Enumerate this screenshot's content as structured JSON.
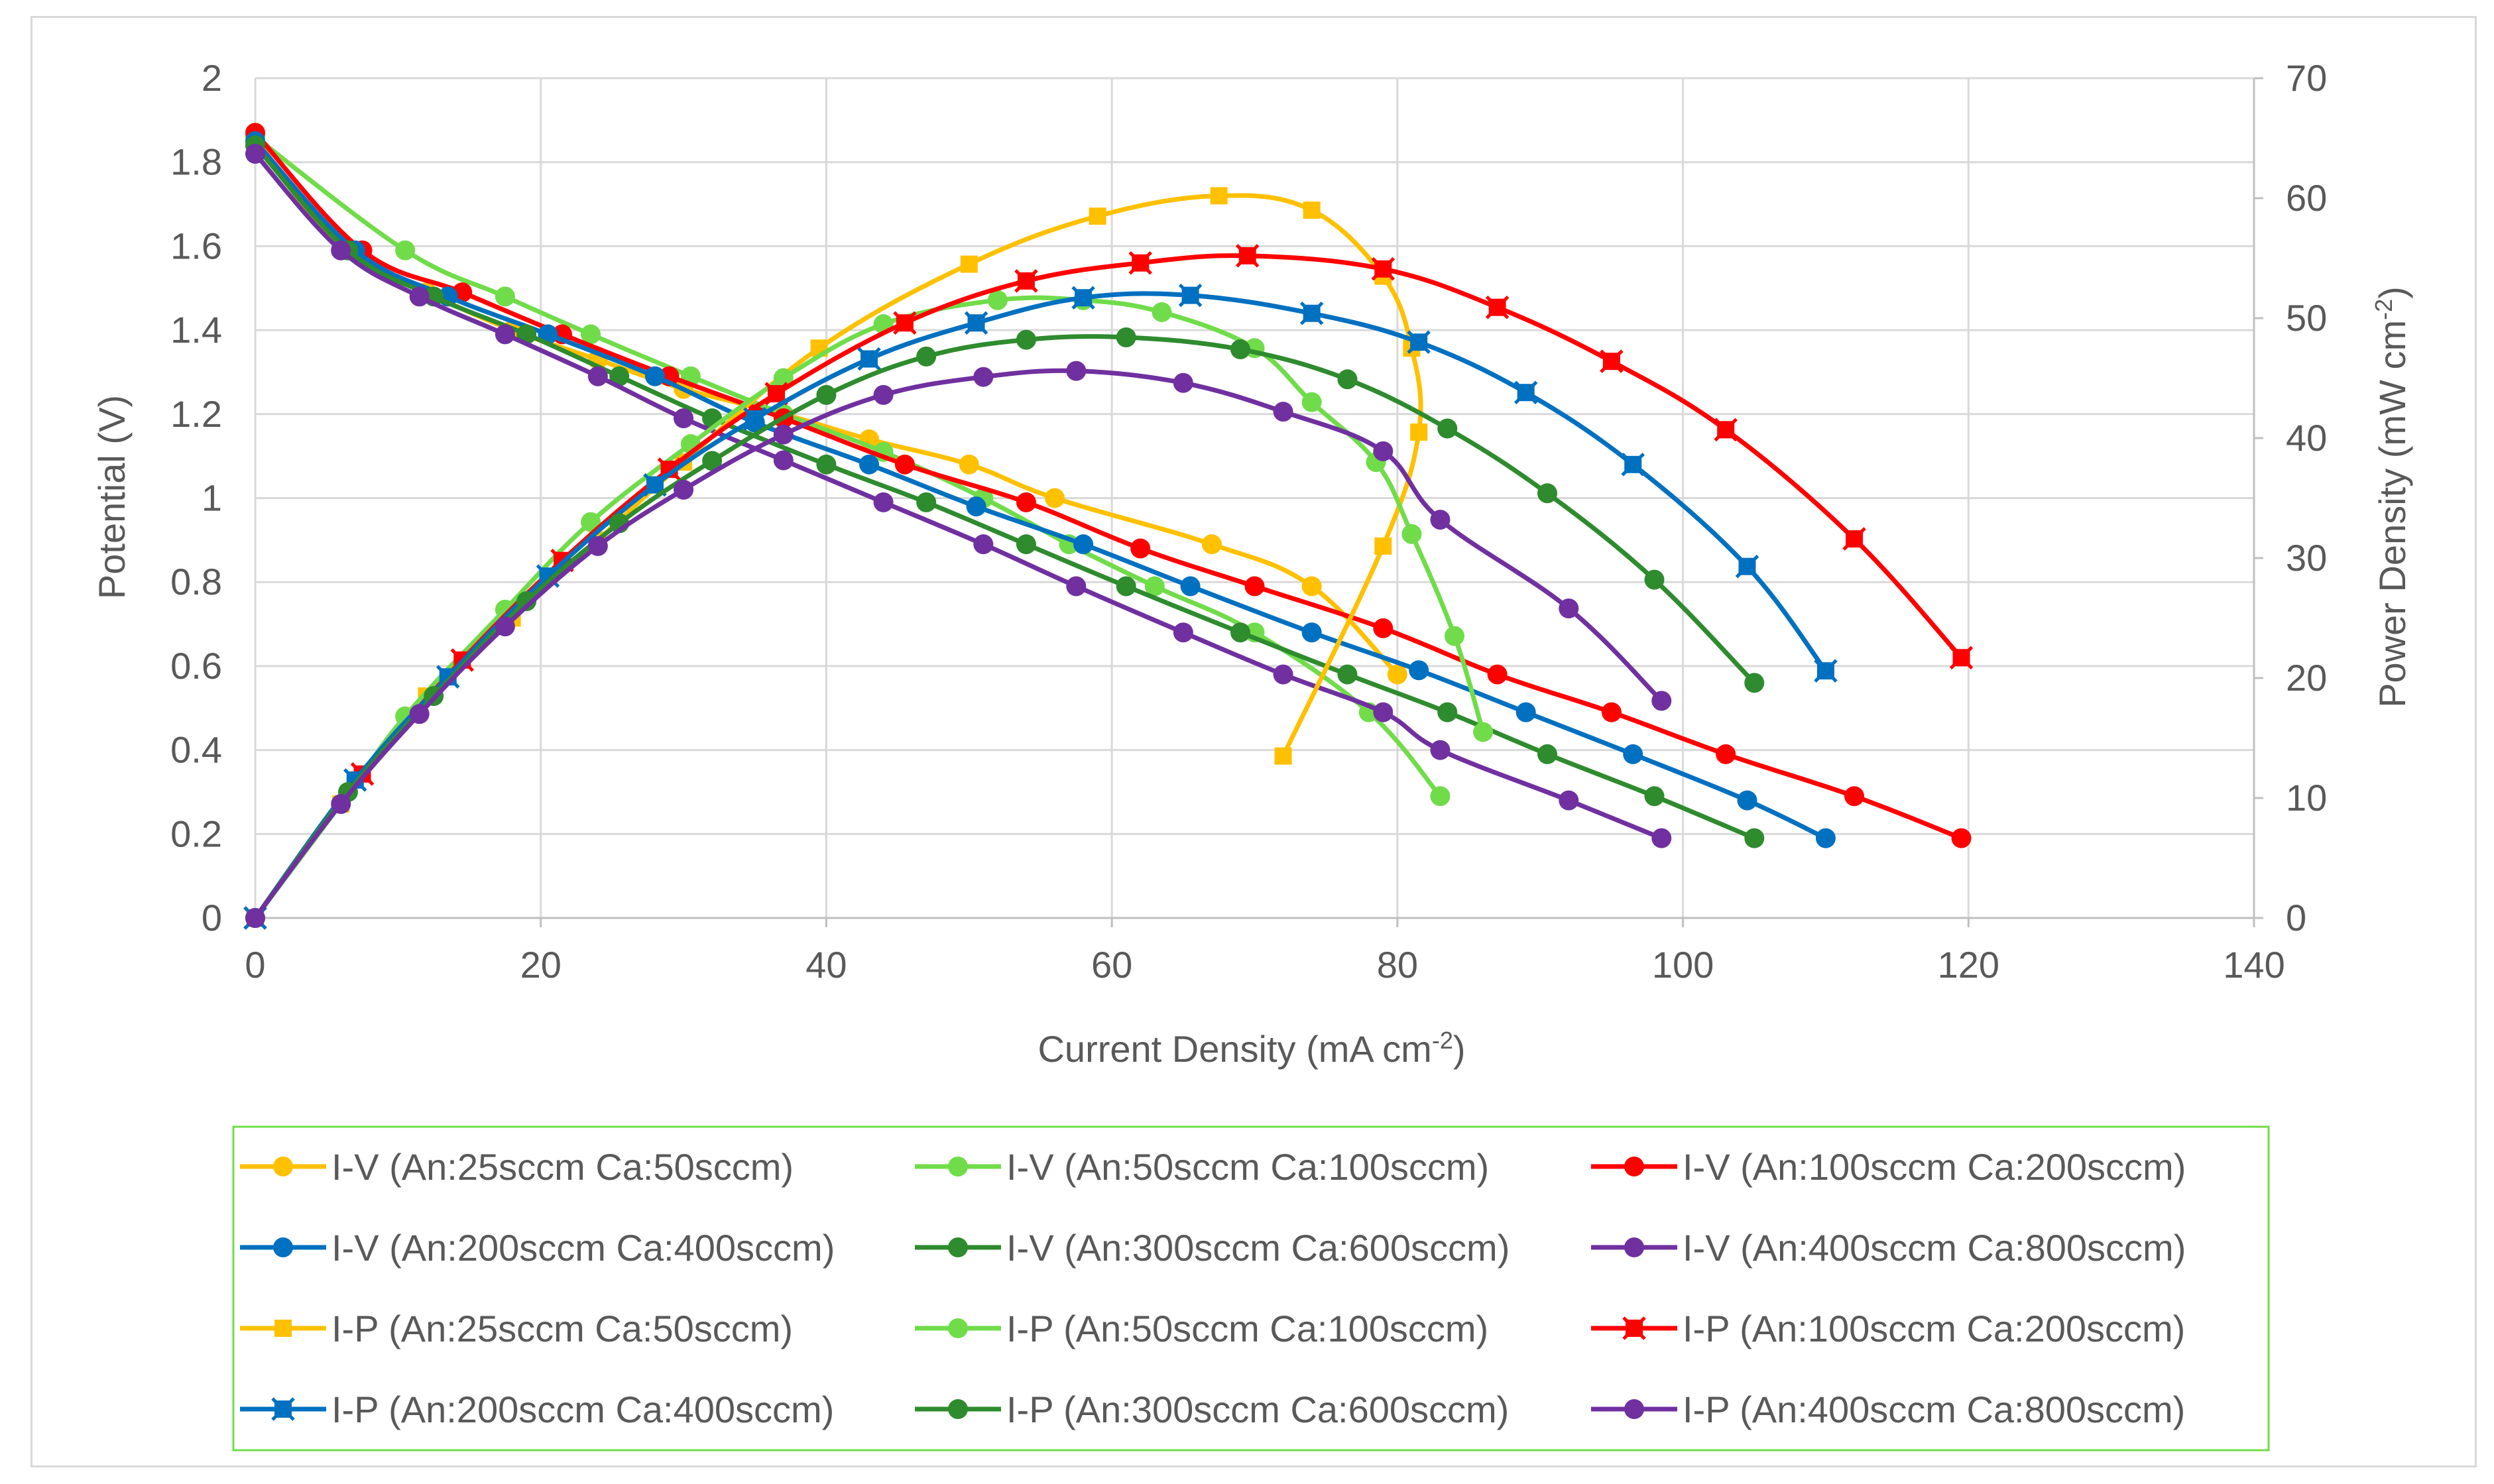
{
  "chart_data": {
    "type": "line",
    "title": "",
    "xlabel": "Current Density (mA cm",
    "xlabel_sup": "-2",
    "xlabel_end": ")",
    "ylabel": "Potential (V)",
    "y2label": "Power Density (mW cm",
    "y2label_sup": "-2",
    "y2label_end": ")",
    "xlim": [
      0,
      140
    ],
    "ylim": [
      0,
      2
    ],
    "y2lim": [
      0,
      70
    ],
    "xticks": [
      "0",
      "20",
      "40",
      "60",
      "80",
      "100",
      "120",
      "140"
    ],
    "yticks": [
      "0",
      "0.2",
      "0.4",
      "0.6",
      "0.8",
      "1",
      "1.2",
      "1.4",
      "1.6",
      "1.8",
      "2"
    ],
    "y2ticks": [
      "0",
      "10",
      "20",
      "30",
      "40",
      "50",
      "60",
      "70"
    ],
    "grid": true,
    "legend_position": "bottom",
    "series": [
      {
        "name": "I-V (An:25sccm  Ca:50sccm)",
        "kind": "IV",
        "marker": "circle",
        "color": "#FFC000",
        "axis": "left",
        "x": [
          0,
          6,
          12,
          18,
          24,
          30,
          37,
          43,
          50,
          56,
          67,
          74,
          80
        ],
        "y": [
          1.86,
          1.59,
          1.49,
          1.4,
          1.33,
          1.26,
          1.2,
          1.14,
          1.08,
          1.0,
          0.89,
          0.79,
          0.58
        ]
      },
      {
        "name": "I-V (An:50sccm  Ca:100sccm)",
        "kind": "IV",
        "marker": "circle",
        "color": "#70DC4A",
        "axis": "left",
        "x": [
          0,
          10.5,
          17.5,
          23.5,
          30.5,
          37,
          44,
          51,
          57,
          63,
          70,
          78,
          83
        ],
        "y": [
          1.86,
          1.59,
          1.48,
          1.39,
          1.29,
          1.2,
          1.11,
          1.0,
          0.89,
          0.79,
          0.68,
          0.49,
          0.29
        ]
      },
      {
        "name": "I-V (An:100sccm  Ca:200sccm)",
        "kind": "IV",
        "marker": "circle",
        "color": "#FF0000",
        "axis": "left",
        "x": [
          0,
          7.5,
          14.5,
          21.5,
          29,
          37,
          45.5,
          54,
          62,
          70,
          79,
          87,
          95,
          103,
          112,
          119.5
        ],
        "y": [
          1.87,
          1.59,
          1.49,
          1.39,
          1.29,
          1.19,
          1.08,
          0.99,
          0.88,
          0.79,
          0.69,
          0.58,
          0.49,
          0.39,
          0.29,
          0.19
        ]
      },
      {
        "name": "I-V (An:200sccm  Ca:400sccm)",
        "kind": "IV",
        "marker": "circle",
        "color": "#0070C0",
        "axis": "left",
        "x": [
          0,
          7,
          13.5,
          20.5,
          28,
          35,
          43,
          50.5,
          58,
          65.5,
          74,
          81.5,
          89,
          96.5,
          104.5,
          110
        ],
        "y": [
          1.85,
          1.59,
          1.48,
          1.39,
          1.29,
          1.18,
          1.08,
          0.98,
          0.89,
          0.79,
          0.68,
          0.59,
          0.49,
          0.39,
          0.28,
          0.19
        ]
      },
      {
        "name": "I-V (An:300sccm  Ca:600sccm)",
        "kind": "IV",
        "marker": "circle",
        "color": "#2E8B2E",
        "axis": "left",
        "x": [
          0,
          6.5,
          12.5,
          19,
          25.5,
          32,
          40,
          47,
          54,
          61,
          69,
          76.5,
          83.5,
          90.5,
          98,
          105
        ],
        "y": [
          1.84,
          1.59,
          1.48,
          1.39,
          1.29,
          1.19,
          1.08,
          0.99,
          0.89,
          0.79,
          0.68,
          0.58,
          0.49,
          0.39,
          0.29,
          0.19
        ]
      },
      {
        "name": "I-V (An:400sccm  Ca:800sccm)",
        "kind": "IV",
        "marker": "circle",
        "color": "#7030A0",
        "axis": "left",
        "x": [
          0,
          6,
          11.5,
          17.5,
          24,
          30,
          37,
          44,
          51,
          57.5,
          65,
          72,
          79,
          83,
          92,
          98.5
        ],
        "y": [
          1.82,
          1.59,
          1.48,
          1.39,
          1.29,
          1.19,
          1.09,
          0.99,
          0.89,
          0.79,
          0.68,
          0.58,
          0.49,
          0.4,
          0.28,
          0.19
        ]
      },
      {
        "name": "I-P (An:25sccm  Ca:50sccm)",
        "kind": "IP",
        "marker": "square",
        "color": "#FFC000",
        "axis": "right",
        "x": [
          0,
          6,
          12,
          18,
          24,
          30,
          39.5,
          50,
          59,
          67.5,
          74,
          79,
          81,
          81.5,
          79,
          72
        ],
        "y": [
          0,
          9.5,
          18.5,
          25,
          31.5,
          38,
          47.5,
          54.5,
          58.5,
          60.2,
          59,
          53.5,
          47.5,
          40.5,
          31,
          13.5
        ]
      },
      {
        "name": "I-P (An:50sccm  Ca:100sccm)",
        "kind": "IP",
        "marker": "circle",
        "color": "#70DC4A",
        "axis": "right",
        "x": [
          0,
          6,
          10.5,
          17.5,
          23.5,
          30.5,
          37,
          44,
          52,
          58,
          63.5,
          70,
          74,
          78.5,
          81,
          84,
          86
        ],
        "y": [
          0,
          9.5,
          16.8,
          25.7,
          33,
          39.5,
          45,
          49.5,
          51.5,
          51.5,
          50.5,
          47.5,
          43,
          38,
          32,
          23.5,
          15.5
        ]
      },
      {
        "name": "I-P (An:100sccm  Ca:200sccm)",
        "kind": "IP",
        "marker": "x-square",
        "color": "#FF0000",
        "axis": "right",
        "x": [
          0,
          7.5,
          14.5,
          21.5,
          29,
          36.5,
          45.5,
          54,
          62,
          69.5,
          79,
          87,
          95,
          103,
          112,
          119.5
        ],
        "y": [
          0,
          12,
          21.5,
          29.8,
          37.4,
          43.7,
          49.6,
          53.1,
          54.6,
          55.2,
          54.1,
          50.9,
          46.4,
          40.7,
          31.6,
          21.7
        ]
      },
      {
        "name": "I-P (An:200sccm  Ca:400sccm)",
        "kind": "IP",
        "marker": "x-square",
        "color": "#0070C0",
        "axis": "right",
        "x": [
          0,
          7,
          13.5,
          20.5,
          28,
          35,
          43,
          50.5,
          58,
          65.5,
          74,
          81.5,
          89,
          96.5,
          104.5,
          110
        ],
        "y": [
          0,
          11.5,
          20.1,
          28.5,
          36.1,
          41.6,
          46.6,
          49.6,
          51.7,
          51.9,
          50.4,
          48,
          43.8,
          37.8,
          29.3,
          20.6
        ]
      },
      {
        "name": "I-P (An:300sccm  Ca:600sccm)",
        "kind": "IP",
        "marker": "circle",
        "color": "#2E8B2E",
        "axis": "right",
        "x": [
          0,
          6.5,
          12.5,
          19,
          25.5,
          32,
          40,
          47,
          54,
          61,
          69,
          76.5,
          83.5,
          90.5,
          98,
          105
        ],
        "y": [
          0,
          10.5,
          18.5,
          26.4,
          32.9,
          38.1,
          43.6,
          46.8,
          48.2,
          48.4,
          47.4,
          44.9,
          40.8,
          35.4,
          28.2,
          19.6
        ]
      },
      {
        "name": "I-P (An:400sccm  Ca:800sccm)",
        "kind": "IP",
        "marker": "circle",
        "color": "#7030A0",
        "axis": "right",
        "x": [
          0,
          6,
          11.5,
          17.5,
          24,
          30,
          37,
          44,
          51,
          57.5,
          65,
          72,
          79,
          83,
          92,
          98.5
        ],
        "y": [
          0,
          9.5,
          17,
          24.3,
          31,
          35.7,
          40.3,
          43.6,
          45.1,
          45.6,
          44.6,
          42.2,
          38.9,
          33.2,
          25.8,
          18.1
        ]
      }
    ]
  }
}
